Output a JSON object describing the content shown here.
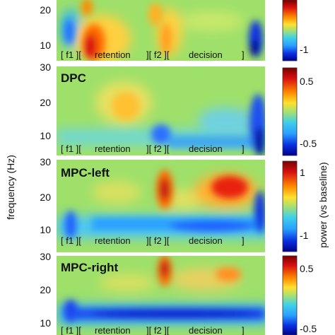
{
  "chart_data": {
    "type": "heatmap",
    "ylabel": "frequency (Hz)",
    "colorbar_label": "power (vs baseline)",
    "segment_labels": [
      "[ f1 ][",
      "retention",
      "][ f2 ][",
      "decision",
      "]"
    ],
    "colors": {
      "background": "#9ee06a",
      "warm": "#c81010",
      "cool": "#0a22cc"
    },
    "panels": [
      {
        "title": "",
        "yticks": [
          10,
          20
        ],
        "ylim": [
          5,
          26
        ],
        "colorbar_ticks": [
          "-1"
        ]
      },
      {
        "title": "DPC",
        "yticks": [
          10,
          20,
          30
        ],
        "ylim": [
          5,
          30
        ],
        "colorbar_ticks": [
          "0.5",
          "-0.5"
        ]
      },
      {
        "title": "MPC-left",
        "yticks": [
          10,
          20,
          30
        ],
        "ylim": [
          5,
          30
        ],
        "colorbar_ticks": [
          "1",
          "-1"
        ]
      },
      {
        "title": "MPC-right",
        "yticks": [
          10,
          20,
          30
        ],
        "ylim": [
          5,
          30
        ],
        "colorbar_ticks": [
          "0.5",
          "-0.5"
        ]
      }
    ]
  }
}
